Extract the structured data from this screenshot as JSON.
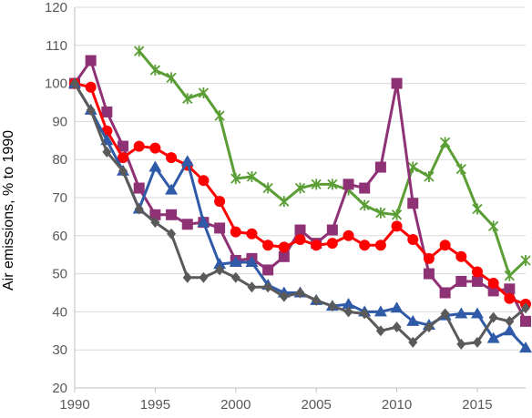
{
  "chart_data": {
    "type": "line",
    "title": "",
    "xlabel": "",
    "ylabel": "Air emissions, % to 1990",
    "xlim": [
      1990,
      2018
    ],
    "ylim": [
      20,
      120
    ],
    "xticks": [
      1990,
      1995,
      2000,
      2005,
      2010,
      2015
    ],
    "yticks": [
      20,
      30,
      40,
      50,
      60,
      70,
      80,
      90,
      100,
      110,
      120
    ],
    "grid": "y",
    "legend": "none",
    "x": [
      1990,
      1991,
      1992,
      1993,
      1994,
      1995,
      1996,
      1997,
      1998,
      1999,
      2000,
      2001,
      2002,
      2003,
      2004,
      2005,
      2006,
      2007,
      2008,
      2009,
      2010,
      2011,
      2012,
      2013,
      2014,
      2015,
      2016,
      2017,
      2018
    ],
    "series": [
      {
        "color": "#5a9e35",
        "marker": "x",
        "values": [
          null,
          null,
          null,
          null,
          108.5,
          103.5,
          101.5,
          96,
          97.5,
          91.5,
          75,
          75.5,
          72.5,
          69,
          72.5,
          73.5,
          73.5,
          72,
          68,
          66,
          65.5,
          78,
          75.5,
          84.5,
          77.5,
          67,
          62.5,
          49.5,
          53.5
        ]
      },
      {
        "color": "#8e3275",
        "marker": "square",
        "values": [
          100,
          106,
          92.5,
          83.5,
          72.5,
          65.5,
          65.5,
          63,
          63.5,
          62,
          53.5,
          54,
          51,
          54.5,
          61.5,
          58,
          61.5,
          73.5,
          72.5,
          78,
          100,
          68.5,
          50,
          45,
          48,
          48,
          45.5,
          46,
          37.5
        ]
      },
      {
        "color": "#ff0000",
        "marker": "circle",
        "values": [
          100,
          99,
          87.5,
          80.5,
          83.5,
          83,
          80.5,
          78.5,
          74.5,
          69,
          61,
          60.5,
          57.5,
          57,
          59,
          57.5,
          58,
          60,
          57.5,
          57.5,
          62.5,
          59,
          54,
          57.5,
          54.5,
          50.5,
          47.5,
          43.5,
          42
        ]
      },
      {
        "color": "#2e5aa8",
        "marker": "triangle",
        "values": [
          100,
          93,
          85,
          77,
          67,
          78,
          72,
          79.5,
          63.5,
          52.5,
          53,
          53,
          47,
          45,
          45,
          43,
          41.5,
          42,
          40,
          40,
          41,
          37.5,
          36.5,
          39,
          39.5,
          39.5,
          33,
          35,
          30.5
        ]
      },
      {
        "color": "#5a5a5a",
        "marker": "diamond",
        "values": [
          100,
          93,
          82,
          77,
          67,
          63.5,
          60.5,
          49,
          49,
          51,
          49,
          46.5,
          46.5,
          44,
          45,
          43,
          41.5,
          40,
          39.5,
          35,
          36,
          32,
          36,
          39.5,
          31.5,
          32,
          38.5,
          37.5,
          41
        ]
      }
    ]
  }
}
